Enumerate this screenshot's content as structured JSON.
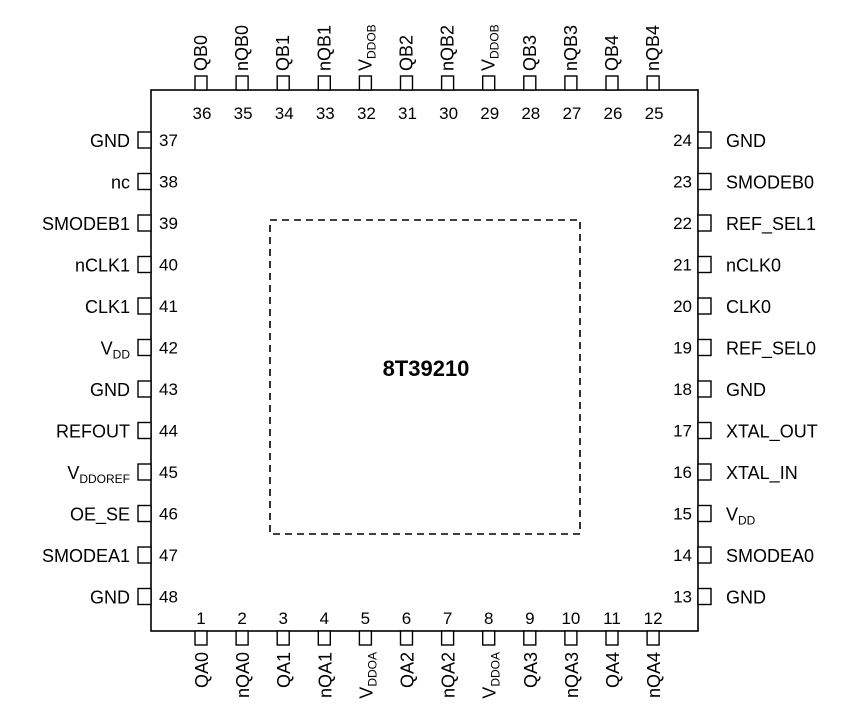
{
  "chip": {
    "part_number": "8T39210"
  },
  "colors": {
    "ink": "#000000",
    "background": "#ffffff"
  },
  "pins": {
    "top": [
      {
        "num": "36",
        "name": "QB0"
      },
      {
        "num": "35",
        "name": "nQB0"
      },
      {
        "num": "34",
        "name": "QB1"
      },
      {
        "num": "33",
        "name": "nQB1"
      },
      {
        "num": "32",
        "name": "V",
        "sub": "DDOB"
      },
      {
        "num": "31",
        "name": "QB2"
      },
      {
        "num": "30",
        "name": "nQB2"
      },
      {
        "num": "29",
        "name": "V",
        "sub": "DDOB"
      },
      {
        "num": "28",
        "name": "QB3"
      },
      {
        "num": "27",
        "name": "nQB3"
      },
      {
        "num": "26",
        "name": "QB4"
      },
      {
        "num": "25",
        "name": "nQB4"
      }
    ],
    "bottom": [
      {
        "num": "1",
        "name": "QA0"
      },
      {
        "num": "2",
        "name": "nQA0"
      },
      {
        "num": "3",
        "name": "QA1"
      },
      {
        "num": "4",
        "name": "nQA1"
      },
      {
        "num": "5",
        "name": "V",
        "sub": "DDOA"
      },
      {
        "num": "6",
        "name": "QA2"
      },
      {
        "num": "7",
        "name": "nQA2"
      },
      {
        "num": "8",
        "name": "V",
        "sub": "DDOA"
      },
      {
        "num": "9",
        "name": "QA3"
      },
      {
        "num": "10",
        "name": "nQA3"
      },
      {
        "num": "11",
        "name": "QA4"
      },
      {
        "num": "12",
        "name": "nQA4"
      }
    ],
    "left": [
      {
        "num": "37",
        "name": "GND"
      },
      {
        "num": "38",
        "name": "nc"
      },
      {
        "num": "39",
        "name": "SMODEB1"
      },
      {
        "num": "40",
        "name": "nCLK1"
      },
      {
        "num": "41",
        "name": "CLK1"
      },
      {
        "num": "42",
        "name": "V",
        "sub": "DD"
      },
      {
        "num": "43",
        "name": "GND"
      },
      {
        "num": "44",
        "name": "REFOUT"
      },
      {
        "num": "45",
        "name": "V",
        "sub": "DDOREF"
      },
      {
        "num": "46",
        "name": "OE_SE"
      },
      {
        "num": "47",
        "name": "SMODEA1"
      },
      {
        "num": "48",
        "name": "GND"
      }
    ],
    "right": [
      {
        "num": "24",
        "name": "GND"
      },
      {
        "num": "23",
        "name": "SMODEB0"
      },
      {
        "num": "22",
        "name": "REF_SEL1"
      },
      {
        "num": "21",
        "name": "nCLK0"
      },
      {
        "num": "20",
        "name": "CLK0"
      },
      {
        "num": "19",
        "name": "REF_SEL0"
      },
      {
        "num": "18",
        "name": "GND"
      },
      {
        "num": "17",
        "name": "XTAL_OUT"
      },
      {
        "num": "16",
        "name": "XTAL_IN"
      },
      {
        "num": "15",
        "name": "V",
        "sub": "DD"
      },
      {
        "num": "14",
        "name": "SMODEA0"
      },
      {
        "num": "13",
        "name": "GND"
      }
    ]
  }
}
